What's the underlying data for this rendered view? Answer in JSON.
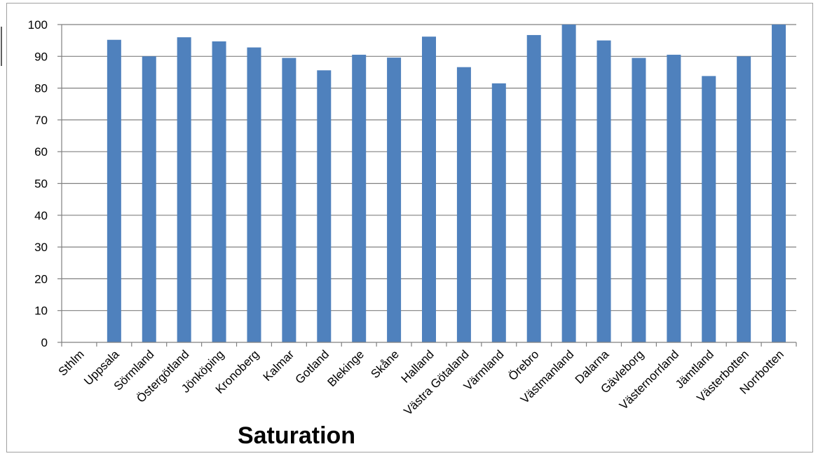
{
  "chart_data": {
    "type": "bar",
    "title": "Saturation",
    "xlabel": "",
    "ylabel": "",
    "ylim": [
      0,
      100
    ],
    "yticks": [
      0,
      10,
      20,
      30,
      40,
      50,
      60,
      70,
      80,
      90,
      100
    ],
    "grid": true,
    "legend": "none",
    "bar_color": "#4f81bd",
    "categories": [
      "Sthlm",
      "Uppsala",
      "Sörmland",
      "Östergötland",
      "Jönköping",
      "Kronoberg",
      "Kalmar",
      "Gotland",
      "Blekinge",
      "Skåne",
      "Halland",
      "Västra Götaland",
      "Värmland",
      "Örebro",
      "Västmanland",
      "Dalarna",
      "Gävleborg",
      "Västernorrland",
      "Jämtland",
      "Västerbotten",
      "Norrbotten"
    ],
    "values": [
      0,
      95.2,
      90.0,
      96.0,
      94.7,
      92.8,
      89.5,
      85.6,
      90.5,
      89.6,
      96.2,
      86.6,
      81.5,
      96.7,
      100,
      95.0,
      89.5,
      90.5,
      83.8,
      90.0,
      100
    ]
  }
}
